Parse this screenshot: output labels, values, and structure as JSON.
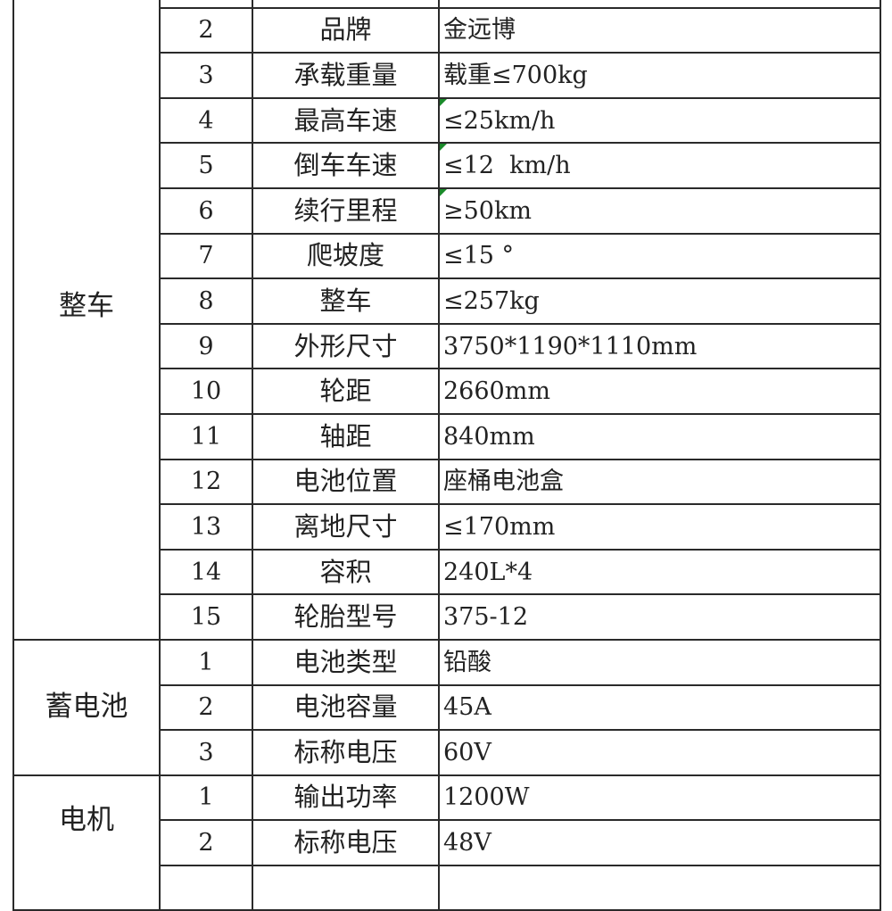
{
  "colors": {
    "comment_marker": "#1a8a2a",
    "border": "#2a2a2a"
  },
  "groups": [
    {
      "category": "整车",
      "rows": [
        {
          "num": "",
          "name": "",
          "value": ""
        },
        {
          "num": "2",
          "name": "品牌",
          "value": "金远博"
        },
        {
          "num": "3",
          "name": "承载重量",
          "value": "载重≤700kg"
        },
        {
          "num": "4",
          "name": "最高车速",
          "value": "≤25km/h",
          "comment": true
        },
        {
          "num": "5",
          "name": "倒车车速",
          "value": "≤12  km/h",
          "comment": true
        },
        {
          "num": "6",
          "name": "续行里程",
          "value": "≥50km",
          "comment": true
        },
        {
          "num": "7",
          "name": "爬坡度",
          "value": "≤15 °"
        },
        {
          "num": "8",
          "name": "整车",
          "value": "≤257kg"
        },
        {
          "num": "9",
          "name": "外形尺寸",
          "value": "3750*1190*1110mm"
        },
        {
          "num": "10",
          "name": "轮距",
          "value": "2660mm"
        },
        {
          "num": "11",
          "name": "轴距",
          "value": "840mm"
        },
        {
          "num": "12",
          "name": "电池位置",
          "value": "座桶电池盒"
        },
        {
          "num": "13",
          "name": "离地尺寸",
          "value": "≤170mm"
        },
        {
          "num": "14",
          "name": "容积",
          "value": "240L*4"
        },
        {
          "num": "15",
          "name": "轮胎型号",
          "value": "375-12"
        }
      ]
    },
    {
      "category": "蓄电池",
      "rows": [
        {
          "num": "1",
          "name": "电池类型",
          "value": "铅酸"
        },
        {
          "num": "2",
          "name": "电池容量",
          "value": "45A"
        },
        {
          "num": "3",
          "name": "标称电压",
          "value": "60V"
        }
      ]
    },
    {
      "category": "电机",
      "rows": [
        {
          "num": "1",
          "name": "输出功率",
          "value": "1200W"
        },
        {
          "num": "2",
          "name": "标称电压",
          "value": "48V"
        },
        {
          "num": "",
          "name": "",
          "value": ""
        }
      ]
    }
  ]
}
